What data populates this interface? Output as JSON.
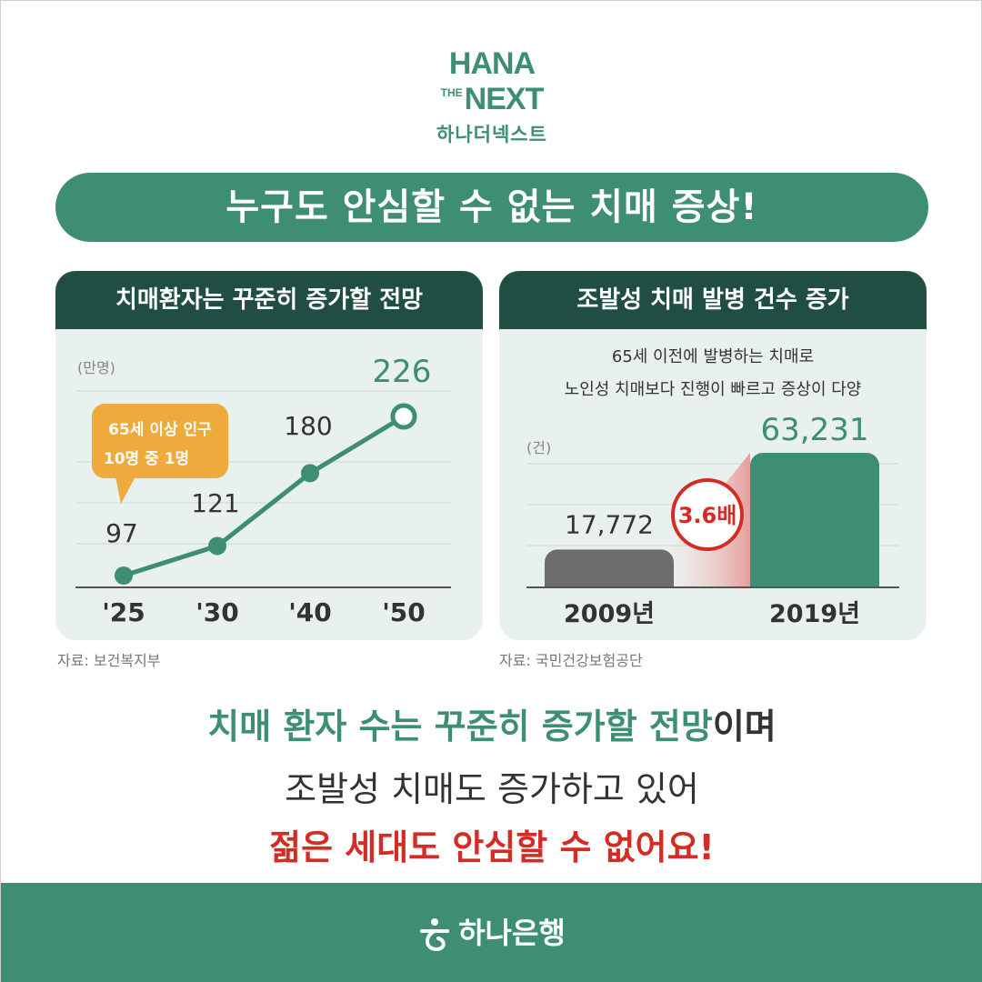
{
  "logo": {
    "line1": "HANA",
    "the": "THE",
    "next": "NEXT",
    "korean": "하나더넥스트"
  },
  "headline": "누구도 안심할 수 없는 치매 증상!",
  "colors": {
    "green": "#3e8e74",
    "dark_green": "#214e42",
    "panel_bg": "#e8f1ed",
    "orange": "#eeaa3c",
    "gray_bar": "#6d6d6d",
    "red": "#d42b24"
  },
  "left_panel": {
    "title": "치매환자는 꾸준히 증가할 전망",
    "source": "자료: 보건복지부"
  },
  "right_panel": {
    "title": "조발성 치매 발병 건수 증가",
    "desc_line1": "65세 이전에 발병하는 치매로",
    "desc_line2": "노인성 치매보다 진행이 빠르고 증상이 다양",
    "source": "자료: 국민건강보험공단"
  },
  "chart_data": [
    {
      "type": "line",
      "unit": "(만명)",
      "categories": [
        "'25",
        "'30",
        "'40",
        "'50"
      ],
      "values": [
        97,
        121,
        180,
        226
      ],
      "value_labels": [
        "97",
        "121",
        "180",
        "226"
      ],
      "callout": [
        "65세 이상 인구",
        "10명 중 1명"
      ]
    },
    {
      "type": "bar",
      "unit": "(건)",
      "categories": [
        "2009년",
        "2019년"
      ],
      "values": [
        17772,
        63231
      ],
      "value_labels": [
        "17,772",
        "63,231"
      ],
      "ratio_label": "3.6배"
    }
  ],
  "message": {
    "line1_highlight": "치매 환자 수는 꾸준히 증가할 전망",
    "line1_rest": "이며",
    "line2": "조발성 치매도 증가하고 있어",
    "line3": "젊은 세대도 안심할 수 없어요!"
  },
  "footer": {
    "bank_name": "하나은행",
    "icon": "hana-bank-logo-icon"
  }
}
